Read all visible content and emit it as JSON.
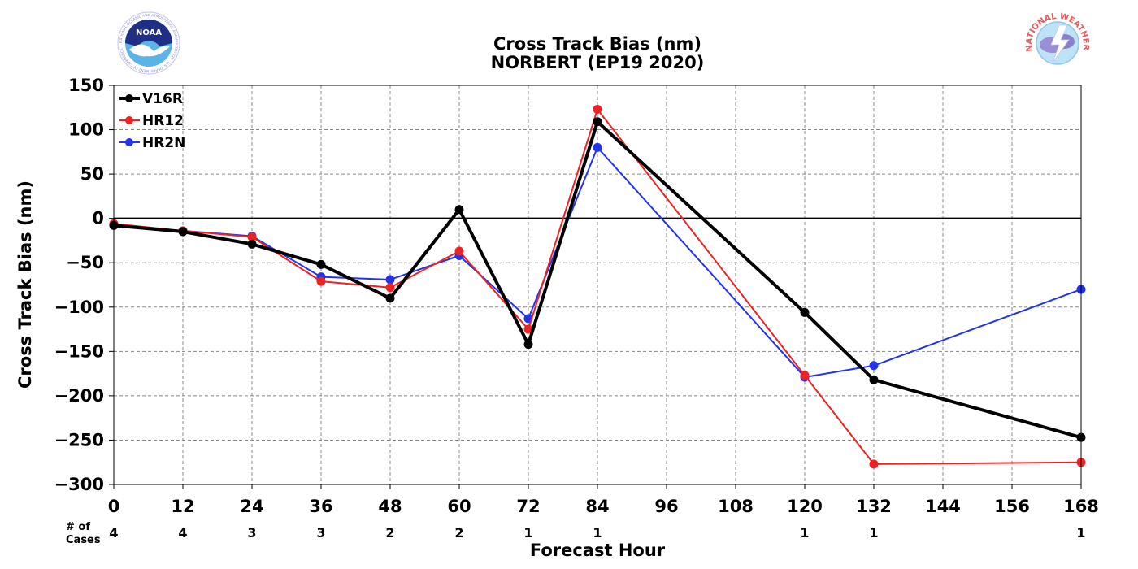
{
  "chart_data": {
    "type": "line",
    "title": "Cross Track Bias (nm)",
    "subtitle": "NORBERT (EP19 2020)",
    "xlabel": "Forecast Hour",
    "ylabel": "Cross Track Bias (nm)",
    "xlim": [
      0,
      168
    ],
    "ylim": [
      -300,
      150
    ],
    "x_ticks": [
      0,
      12,
      24,
      36,
      48,
      60,
      72,
      84,
      96,
      108,
      120,
      132,
      144,
      156,
      168
    ],
    "y_ticks": [
      150,
      100,
      50,
      0,
      -50,
      -100,
      -150,
      -200,
      -250,
      -300
    ],
    "y_tick_labels": [
      "150",
      "100",
      "50",
      "0",
      "−50",
      "−100",
      "−150",
      "−200",
      "−250",
      "−300"
    ],
    "grid": true,
    "legend_position": "top-left",
    "series": [
      {
        "name": "V16R",
        "color": "#000000",
        "x": [
          0,
          12,
          24,
          36,
          48,
          60,
          72,
          84,
          120,
          132,
          168
        ],
        "y": [
          -8,
          -15,
          -29,
          -52,
          -90,
          10,
          -142,
          109,
          -106,
          -182,
          -247
        ]
      },
      {
        "name": "HR12",
        "color": "#ee2222",
        "x": [
          0,
          12,
          24,
          36,
          48,
          60,
          72,
          84,
          120,
          132,
          168
        ],
        "y": [
          -6,
          -14,
          -21,
          -71,
          -78,
          -37,
          -125,
          123,
          -177,
          -277,
          -275
        ]
      },
      {
        "name": "HR2N",
        "color": "#2233ee",
        "x": [
          0,
          12,
          24,
          36,
          48,
          60,
          72,
          84,
          120,
          132,
          168
        ],
        "y": [
          -7,
          -14,
          -20,
          -66,
          -69,
          -42,
          -113,
          80,
          -179,
          -166,
          -80
        ]
      }
    ],
    "cases_label": [
      "# of",
      "Cases"
    ],
    "cases": [
      {
        "x": 0,
        "n": "4"
      },
      {
        "x": 12,
        "n": "4"
      },
      {
        "x": 24,
        "n": "3"
      },
      {
        "x": 36,
        "n": "3"
      },
      {
        "x": 48,
        "n": "2"
      },
      {
        "x": 60,
        "n": "2"
      },
      {
        "x": 72,
        "n": "1"
      },
      {
        "x": 84,
        "n": "1"
      },
      {
        "x": 120,
        "n": "1"
      },
      {
        "x": 132,
        "n": "1"
      },
      {
        "x": 168,
        "n": "1"
      }
    ]
  },
  "logos": {
    "noaa": {
      "name": "NOAA",
      "ring_text": "NATIONAL OCEANIC AND ATMOSPHERIC ADMINISTRATION · U.S. DEPARTMENT OF COMMERCE"
    },
    "nws": {
      "ring_text": "NATIONAL WEATHER SERVICE"
    }
  }
}
